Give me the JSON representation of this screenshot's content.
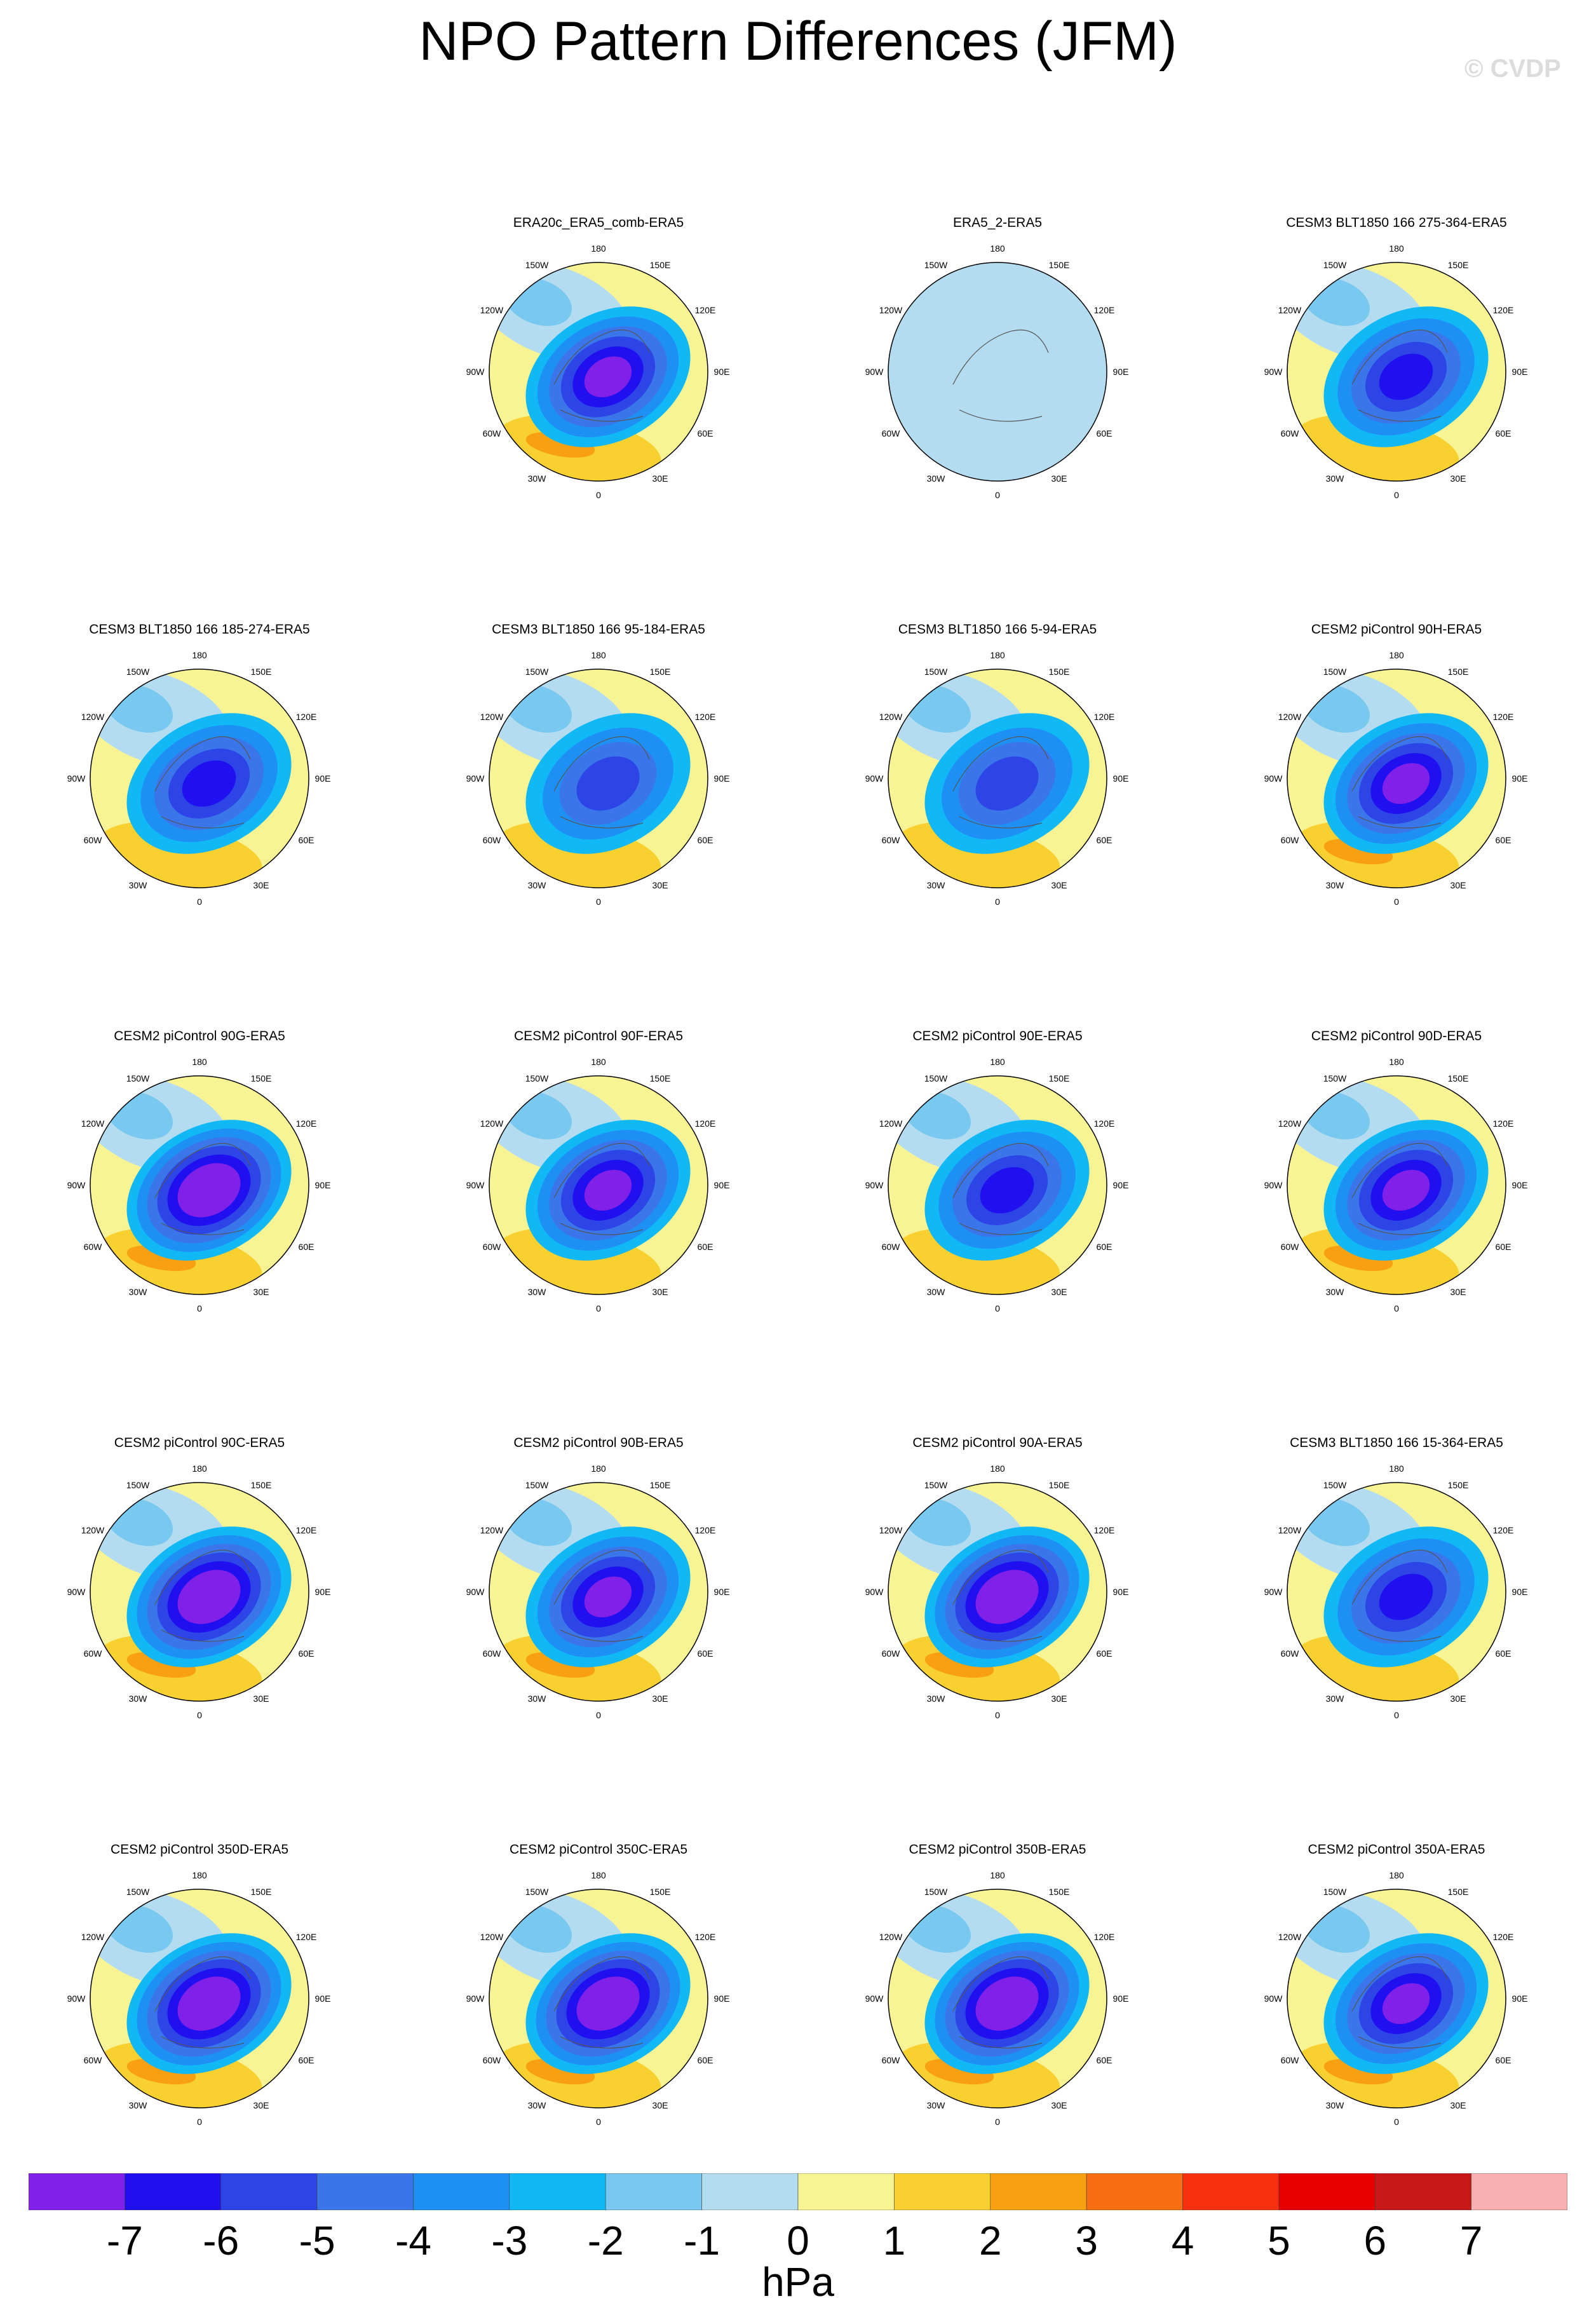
{
  "title": "NPO Pattern Differences (JFM)",
  "watermark": "© CVDP",
  "chart_data": {
    "type": "polar contour map (Northern Hemisphere)",
    "variable": "NPO pattern difference",
    "units": "hPa",
    "levels": [
      -7,
      -6,
      -5,
      -4,
      -3,
      -2,
      -1,
      0,
      1,
      2,
      3,
      4,
      5,
      6,
      7
    ],
    "colors": [
      "#8020e8",
      "#2010f0",
      "#2d45e6",
      "#3a75ea",
      "#1e90f5",
      "#10b8f5",
      "#78c8f0",
      "#b4dcf0",
      "#f8f494",
      "#f8d030",
      "#f8a010",
      "#f86e10",
      "#f83010",
      "#e80000",
      "#c81818",
      "#f8b0b0"
    ],
    "longitude_labels": [
      "180",
      "150E",
      "120E",
      "90E",
      "60E",
      "30E",
      "0",
      "30W",
      "60W",
      "90W",
      "120W",
      "150W"
    ],
    "panels": [
      {
        "title": "ERA20c_ERA5_comb-ERA5",
        "row": 0,
        "col": 1,
        "min_hPa": -6,
        "max_hPa": 3
      },
      {
        "title": "ERA5_2-ERA5",
        "row": 0,
        "col": 2,
        "min_hPa": -1,
        "max_hPa": 1
      },
      {
        "title": "CESM3 BLT1850 166 275-364-ERA5",
        "row": 0,
        "col": 3,
        "min_hPa": -5,
        "max_hPa": 2
      },
      {
        "title": "CESM3 BLT1850 166 185-274-ERA5",
        "row": 1,
        "col": 0,
        "min_hPa": -5,
        "max_hPa": 2
      },
      {
        "title": "CESM3 BLT1850 166 95-184-ERA5",
        "row": 1,
        "col": 1,
        "min_hPa": -4,
        "max_hPa": 2
      },
      {
        "title": "CESM3 BLT1850 166 5-94-ERA5",
        "row": 1,
        "col": 2,
        "min_hPa": -4,
        "max_hPa": 2
      },
      {
        "title": "CESM2 piControl 90H-ERA5",
        "row": 1,
        "col": 3,
        "min_hPa": -6,
        "max_hPa": 3
      },
      {
        "title": "CESM2 piControl 90G-ERA5",
        "row": 2,
        "col": 0,
        "min_hPa": -7,
        "max_hPa": 3
      },
      {
        "title": "CESM2 piControl 90F-ERA5",
        "row": 2,
        "col": 1,
        "min_hPa": -6,
        "max_hPa": 2
      },
      {
        "title": "CESM2 piControl 90E-ERA5",
        "row": 2,
        "col": 2,
        "min_hPa": -5,
        "max_hPa": 2
      },
      {
        "title": "CESM2 piControl 90D-ERA5",
        "row": 2,
        "col": 3,
        "min_hPa": -6,
        "max_hPa": 3
      },
      {
        "title": "CESM2 piControl 90C-ERA5",
        "row": 3,
        "col": 0,
        "min_hPa": -7,
        "max_hPa": 3
      },
      {
        "title": "CESM2 piControl 90B-ERA5",
        "row": 3,
        "col": 1,
        "min_hPa": -6,
        "max_hPa": 3
      },
      {
        "title": "CESM2 piControl 90A-ERA5",
        "row": 3,
        "col": 2,
        "min_hPa": -7,
        "max_hPa": 3
      },
      {
        "title": "CESM3 BLT1850 166 15-364-ERA5",
        "row": 3,
        "col": 3,
        "min_hPa": -5,
        "max_hPa": 2
      },
      {
        "title": "CESM2 piControl 350D-ERA5",
        "row": 4,
        "col": 0,
        "min_hPa": -7,
        "max_hPa": 3
      },
      {
        "title": "CESM2 piControl 350C-ERA5",
        "row": 4,
        "col": 1,
        "min_hPa": -7,
        "max_hPa": 3
      },
      {
        "title": "CESM2 piControl 350B-ERA5",
        "row": 4,
        "col": 2,
        "min_hPa": -7,
        "max_hPa": 3
      },
      {
        "title": "CESM2 piControl 350A-ERA5",
        "row": 4,
        "col": 3,
        "min_hPa": -6,
        "max_hPa": 3
      }
    ]
  }
}
